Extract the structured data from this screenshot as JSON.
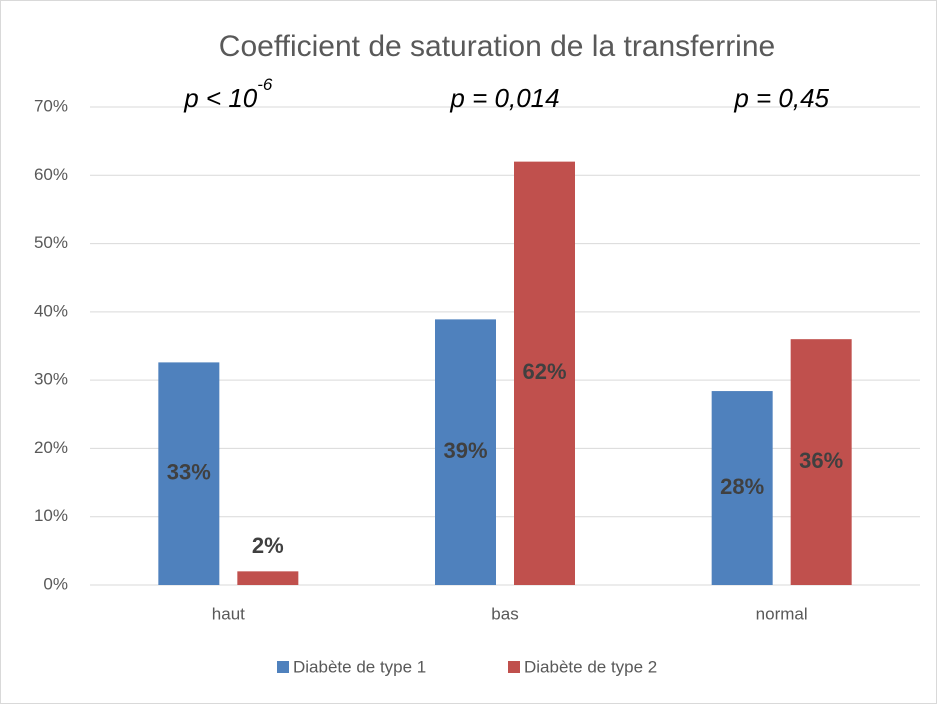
{
  "chart_data": {
    "type": "bar",
    "title": "Coefficient de saturation de la transferrine",
    "annotations": [
      {
        "text": "p < 10",
        "superscript": "-6"
      },
      "p = 0,014",
      "p = 0,45"
    ],
    "categories": [
      "haut",
      "bas",
      "normal"
    ],
    "series": [
      {
        "name": "Diabète de type 1",
        "color": "#4f81bd",
        "values": [
          32.6,
          38.9,
          28.4
        ],
        "value_labels": [
          "33%",
          "39%",
          "28%"
        ]
      },
      {
        "name": "Diabète de type 2",
        "color": "#c0504d",
        "values": [
          2,
          62,
          36
        ],
        "value_labels": [
          "2%",
          "62%",
          "36%"
        ]
      }
    ],
    "ylim": [
      0,
      70
    ],
    "yticks": [
      {
        "value": 0,
        "label": "0%"
      },
      {
        "value": 10,
        "label": "10%"
      },
      {
        "value": 20,
        "label": "20%"
      },
      {
        "value": 30,
        "label": "30%"
      },
      {
        "value": 40,
        "label": "40%"
      },
      {
        "value": 50,
        "label": "50%"
      },
      {
        "value": 60,
        "label": "60%"
      },
      {
        "value": 70,
        "label": "70%"
      }
    ],
    "grid": true,
    "legend": "bottom"
  }
}
